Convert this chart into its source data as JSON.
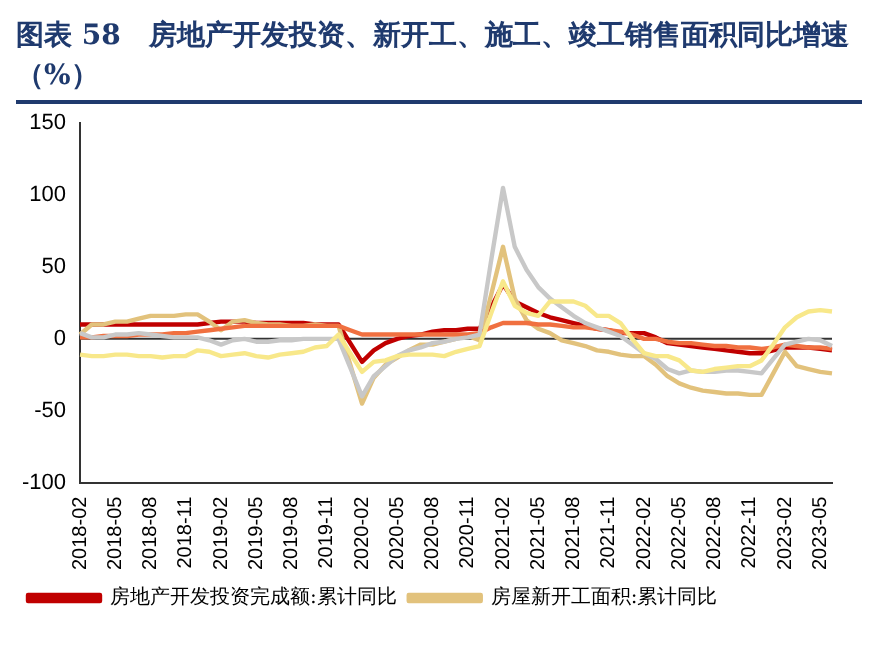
{
  "chart_data": {
    "type": "line",
    "title": "图表 58　房地产开发投资、新开工、施工、竣工销售面积同比增速（%）",
    "categories": [
      "2018-02",
      null,
      null,
      "2018-05",
      null,
      null,
      "2018-08",
      null,
      null,
      "2018-11",
      null,
      null,
      "2019-02",
      null,
      null,
      "2019-05",
      null,
      null,
      "2019-08",
      null,
      null,
      "2019-11",
      null,
      null,
      "2020-02",
      null,
      null,
      "2020-05",
      null,
      null,
      "2020-08",
      null,
      null,
      "2020-11",
      null,
      null,
      "2021-02",
      null,
      null,
      "2021-05",
      null,
      null,
      "2021-08",
      null,
      null,
      "2021-11",
      null,
      null,
      "2022-02",
      null,
      null,
      "2022-05",
      null,
      null,
      "2022-08",
      null,
      null,
      "2022-11",
      null,
      null,
      "2023-02",
      null,
      null,
      "2023-05",
      null
    ],
    "series": [
      {
        "name": "房地产开发投资完成额:累计同比",
        "color": "#c00000",
        "values": [
          10,
          10,
          10,
          10,
          10,
          10,
          10,
          10,
          10,
          10,
          10,
          11,
          12,
          12,
          12,
          11,
          11,
          11,
          11,
          11,
          10,
          10,
          10,
          -3,
          -16,
          -8,
          -3,
          0,
          2,
          3,
          5,
          6,
          6,
          7,
          7,
          22,
          38,
          26,
          22,
          18,
          15,
          13,
          11,
          9,
          7,
          6,
          4,
          4,
          4,
          1,
          -3,
          -4,
          -5,
          -6,
          -7,
          -8,
          -9,
          -10,
          -10,
          -8,
          -6,
          -6,
          -6,
          -7,
          -8
        ]
      },
      {
        "name": "房屋新开工面积:累计同比",
        "color": "#e2c27c",
        "values": [
          3,
          10,
          10,
          12,
          12,
          14,
          16,
          16,
          16,
          17,
          17,
          12,
          6,
          12,
          13,
          11,
          10,
          10,
          9,
          9,
          10,
          9,
          9,
          -18,
          -45,
          -27,
          -18,
          -13,
          -8,
          -4,
          -4,
          -2,
          0,
          2,
          -1,
          31,
          64,
          28,
          13,
          7,
          4,
          -1,
          -3,
          -5,
          -8,
          -9,
          -11,
          -12,
          -12,
          -18,
          -26,
          -31,
          -34,
          -36,
          -37,
          -38,
          -38,
          -39,
          -39,
          -24,
          -9,
          -19,
          -21,
          -23,
          -24
        ]
      },
      {
        "color": "#f07040",
        "values": [
          1,
          1,
          2,
          2,
          2,
          3,
          3,
          3,
          4,
          4,
          5,
          6,
          7,
          8,
          9,
          9,
          9,
          9,
          9,
          9,
          9,
          9,
          9,
          6,
          3,
          3,
          3,
          3,
          3,
          3,
          3,
          3,
          3,
          3,
          4,
          8,
          11,
          11,
          11,
          10,
          10,
          9,
          8,
          8,
          7,
          6,
          5,
          3,
          0,
          0,
          -2,
          -3,
          -3,
          -4,
          -5,
          -5,
          -6,
          -6,
          -7,
          -6,
          -4,
          -5,
          -6,
          -6,
          -7
        ]
      },
      {
        "color": "#c8c8c8",
        "values": [
          4,
          1,
          1,
          3,
          3,
          4,
          3,
          2,
          1,
          1,
          1,
          -1,
          -4,
          -1,
          0,
          -2,
          -2,
          -1,
          -1,
          0,
          0,
          0,
          0,
          -20,
          -40,
          -26,
          -19,
          -12,
          -8,
          -6,
          -3,
          -2,
          0,
          1,
          3,
          55,
          105,
          64,
          48,
          36,
          28,
          22,
          16,
          11,
          8,
          5,
          2,
          -4,
          -10,
          -14,
          -21,
          -24,
          -22,
          -23,
          -23,
          -22,
          -22,
          -23,
          -24,
          -14,
          -4,
          -2,
          0,
          -1,
          -5
        ]
      },
      {
        "color": "#f8e88a",
        "values": [
          -11,
          -12,
          -12,
          -11,
          -11,
          -12,
          -12,
          -13,
          -12,
          -12,
          -8,
          -9,
          -12,
          -11,
          -10,
          -12,
          -13,
          -11,
          -10,
          -9,
          -6,
          -5,
          3,
          -10,
          -23,
          -16,
          -15,
          -12,
          -11,
          -11,
          -11,
          -12,
          -9,
          -7,
          -5,
          18,
          40,
          23,
          18,
          16,
          26,
          26,
          26,
          23,
          16,
          16,
          11,
          0,
          -10,
          -12,
          -12,
          -15,
          -22,
          -23,
          -21,
          -20,
          -19,
          -19,
          -15,
          -4,
          8,
          15,
          19,
          20,
          19
        ]
      }
    ],
    "ref_lines": [
      {
        "axis": "y",
        "value": 0,
        "color": "#333333"
      }
    ],
    "ylim": [
      -100,
      150
    ],
    "yticks": [
      -100,
      -50,
      0,
      50,
      100,
      150
    ],
    "grid": false,
    "legend": "bottom",
    "marker": "none",
    "line_style": "solid"
  }
}
